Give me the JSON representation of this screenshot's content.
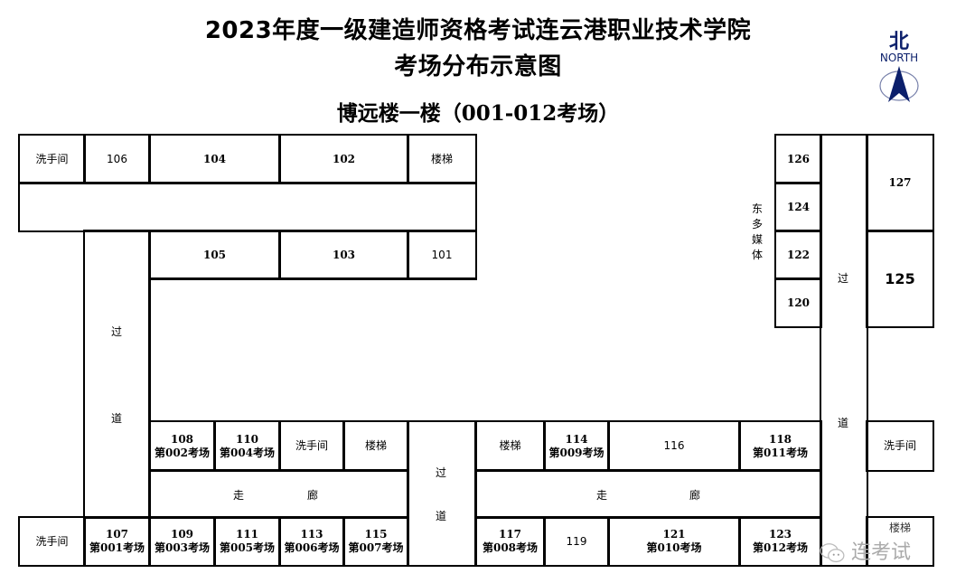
{
  "title_line1": "2023年度一级建造师资格考试连云港职业技术学院",
  "title_line2": "考场分布示意图",
  "subtitle": "博远楼一楼（001-012考场）",
  "compass": {
    "cn": "北",
    "en": "NORTH",
    "color": "#0b1f6b"
  },
  "watermark": "连考试",
  "labels": {
    "washroom": "洗手间",
    "stairs": "楼梯",
    "guo": "过",
    "dao": "道",
    "zou": "走",
    "lang": "廊",
    "east_media": [
      "东",
      "多",
      "媒",
      "体"
    ]
  },
  "rooms": {
    "r106": "106",
    "r104": "104",
    "r102": "102",
    "r105": "105",
    "r103": "103",
    "r101": "101",
    "r108": "108",
    "r108e": "第002考场",
    "r110": "110",
    "r110e": "第004考场",
    "r114": "114",
    "r114e": "第009考场",
    "r116": "116",
    "r118": "118",
    "r118e": "第011考场",
    "r107": "107",
    "r107e": "第001考场",
    "r109": "109",
    "r109e": "第003考场",
    "r111": "111",
    "r111e": "第005考场",
    "r113": "113",
    "r113e": "第006考场",
    "r115": "115",
    "r115e": "第007考场",
    "r117": "117",
    "r117e": "第008考场",
    "r119": "119",
    "r121": "121",
    "r121e": "第010考场",
    "r123": "123",
    "r123e": "第012考场",
    "r126": "126",
    "r124": "124",
    "r122": "122",
    "r120": "120",
    "r127": "127",
    "r125": "125"
  }
}
